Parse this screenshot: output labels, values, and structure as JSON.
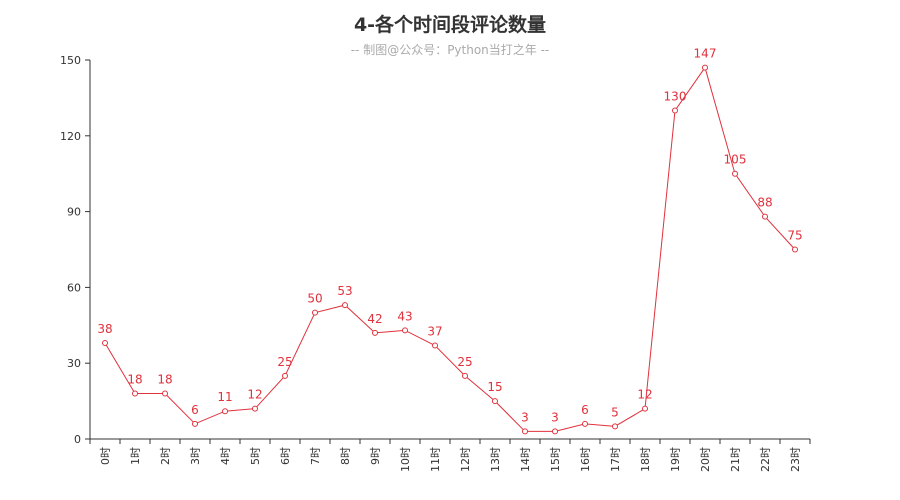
{
  "title": "4-各个时间段评论数量",
  "subtitle": "-- 制图@公众号：Python当打之年 --",
  "colors": {
    "series": "#e0313c",
    "axis": "#333333",
    "title": "#333333",
    "subtitle": "#aaaaaa",
    "background": "#ffffff"
  },
  "chart_data": {
    "type": "line",
    "categories": [
      "0时",
      "1时",
      "2时",
      "3时",
      "4时",
      "5时",
      "6时",
      "7时",
      "8时",
      "9时",
      "10时",
      "11时",
      "12时",
      "13时",
      "14时",
      "15时",
      "16时",
      "17时",
      "18时",
      "19时",
      "20时",
      "21时",
      "22时",
      "23时"
    ],
    "series": [
      {
        "values": [
          38,
          18,
          18,
          6,
          11,
          12,
          25,
          50,
          53,
          42,
          43,
          37,
          25,
          15,
          3,
          3,
          6,
          5,
          12,
          130,
          147,
          105,
          88,
          75
        ]
      }
    ],
    "ylim": [
      0,
      150
    ],
    "yticks": [
      0,
      30,
      60,
      90,
      120,
      150
    ],
    "grid": false,
    "legend": "none",
    "data_labels": true,
    "markers": "hollow-circle"
  }
}
